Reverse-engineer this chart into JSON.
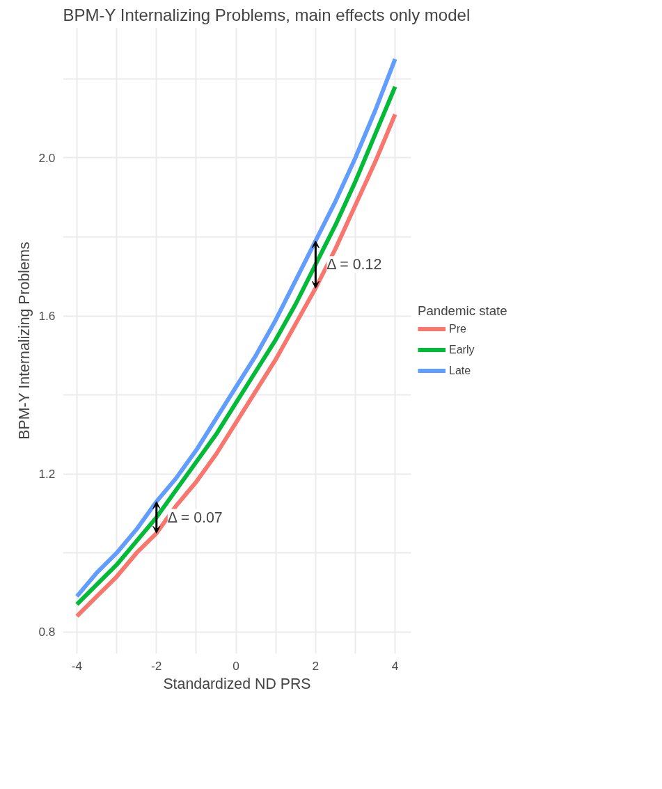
{
  "chart_data": {
    "type": "line",
    "title": "BPM-Y Internalizing Problems, main effects only model",
    "xlabel": "Standardized ND PRS",
    "ylabel": "BPM-Y Internalizing Problems",
    "legend_title": "Pandemic state",
    "x": [
      -4,
      -3.5,
      -3,
      -2.5,
      -2,
      -1.5,
      -1,
      -0.5,
      0,
      0.5,
      1,
      1.5,
      2,
      2.5,
      3,
      3.5,
      4
    ],
    "series": [
      {
        "name": "Pre",
        "color": "#f8766d",
        "values": [
          0.84,
          0.89,
          0.94,
          1.0,
          1.05,
          1.12,
          1.18,
          1.25,
          1.33,
          1.41,
          1.49,
          1.58,
          1.67,
          1.77,
          1.88,
          1.99,
          2.11
        ]
      },
      {
        "name": "Early",
        "color": "#00ba38",
        "values": [
          0.87,
          0.92,
          0.97,
          1.03,
          1.09,
          1.16,
          1.23,
          1.3,
          1.38,
          1.46,
          1.54,
          1.63,
          1.73,
          1.83,
          1.94,
          2.06,
          2.18
        ]
      },
      {
        "name": "Late",
        "color": "#619cff",
        "values": [
          0.89,
          0.95,
          1.0,
          1.06,
          1.13,
          1.19,
          1.26,
          1.34,
          1.42,
          1.5,
          1.59,
          1.69,
          1.79,
          1.89,
          2.0,
          2.12,
          2.25
        ]
      }
    ],
    "annotations": [
      {
        "text": "Δ = 0.07",
        "x": -2,
        "y": 1.09
      },
      {
        "text": "Δ = 0.12",
        "x": 2,
        "y": 1.73
      }
    ],
    "xlim": [
      -4.35,
      4.4
    ],
    "ylim": [
      0.745,
      2.33
    ],
    "xticks": [
      -4,
      {
        "value": -3,
        "label": null
      },
      -2,
      {
        "value": -1,
        "label": null
      },
      0,
      {
        "value": 1,
        "label": null
      },
      2,
      {
        "value": 3,
        "label": null
      },
      4
    ],
    "yticks": [
      0.8,
      {
        "value": 1.0,
        "label": null
      },
      1.2,
      {
        "value": 1.4,
        "label": null
      },
      1.6,
      {
        "value": 1.8,
        "label": null
      },
      {
        "value": 2.0,
        "label": "2.0"
      },
      {
        "value": 2.2,
        "label": null
      }
    ],
    "grid": true,
    "legend": "right",
    "line_style": "solid",
    "marker": "none"
  }
}
